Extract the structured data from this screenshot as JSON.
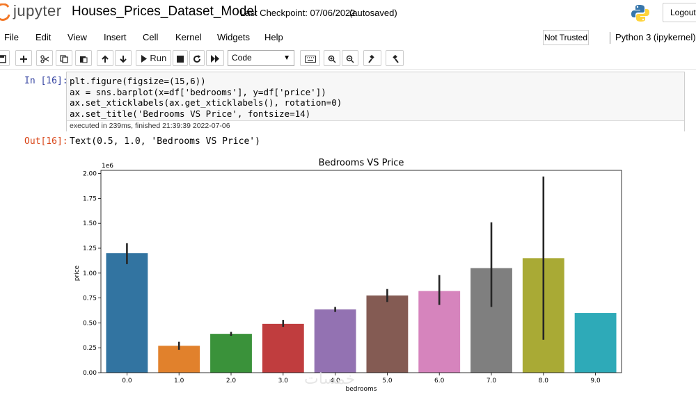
{
  "header": {
    "logo_text": "jupyter",
    "notebook_name": "Houses_Prices_Dataset_Model",
    "checkpoint": "Last Checkpoint: 07/06/2022",
    "autosave_status": "(autosaved)",
    "logout_label": "Logout"
  },
  "menu": {
    "items": [
      "File",
      "Edit",
      "View",
      "Insert",
      "Cell",
      "Kernel",
      "Widgets",
      "Help"
    ],
    "trust_label": "Not Trusted",
    "kernel_label": "Python 3 (ipykernel)"
  },
  "toolbar": {
    "run_label": "Run",
    "cell_type": "Code"
  },
  "cell": {
    "in_prompt": "In [16]:",
    "code_lines": [
      "plt.figure(figsize=(15,6))",
      "ax = sns.barplot(x=df['bedrooms'], y=df['price'])",
      "ax.set_xticklabels(ax.get_xticklabels(), rotation=0)",
      "ax.set_title('Bedrooms VS Price', fontsize=14)"
    ],
    "exec_info": "executed in 239ms, finished 21:39:39 2022-07-06",
    "out_prompt": "Out[16]:",
    "out_text": "Text(0.5, 1.0, 'Bedrooms VS Price')"
  },
  "chart_data": {
    "type": "bar",
    "title": "Bedrooms VS Price",
    "xlabel": "bedrooms",
    "ylabel": "price",
    "y_offset_label": "1e6",
    "categories": [
      "0.0",
      "1.0",
      "2.0",
      "3.0",
      "4.0",
      "5.0",
      "6.0",
      "7.0",
      "8.0",
      "9.0"
    ],
    "values": [
      1.2,
      0.27,
      0.39,
      0.49,
      0.635,
      0.775,
      0.82,
      1.05,
      1.15,
      0.6
    ],
    "error_low": [
      1.09,
      0.23,
      0.37,
      0.46,
      0.61,
      0.71,
      0.68,
      0.66,
      0.33,
      0.6
    ],
    "error_high": [
      1.3,
      0.31,
      0.41,
      0.53,
      0.66,
      0.84,
      0.98,
      1.51,
      1.97,
      0.6
    ],
    "ylim": [
      0,
      2.0
    ],
    "yticks": [
      "0.00",
      "0.25",
      "0.50",
      "0.75",
      "1.00",
      "1.25",
      "1.50",
      "1.75",
      "2.00"
    ],
    "colors": [
      "#3274a1",
      "#e1812c",
      "#3a923a",
      "#c03d3e",
      "#9372b2",
      "#845b53",
      "#d684bd",
      "#7f7f7f",
      "#a9aa35",
      "#2eaab8"
    ],
    "grid": false,
    "legend": "none"
  },
  "watermark": "خمسات"
}
